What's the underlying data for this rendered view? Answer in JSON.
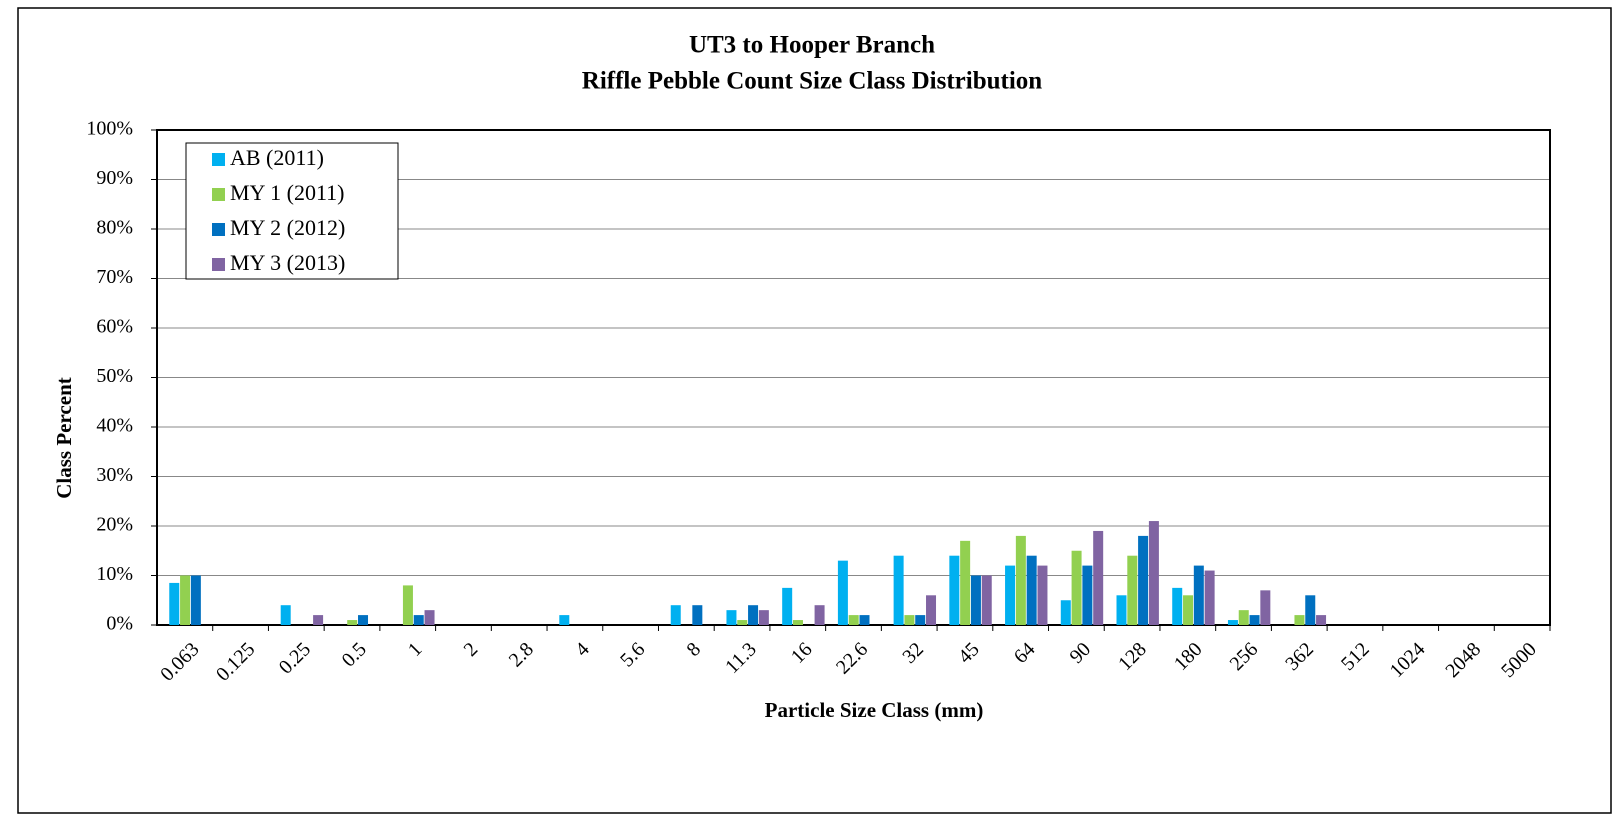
{
  "chart_data": {
    "type": "bar",
    "title": "UT3 to Hooper Branch",
    "subtitle": "Riffle Pebble Count Size Class Distribution",
    "x_label": "Particle Size Class (mm)",
    "y_label": "Class Percent",
    "categories": [
      "0.063",
      "0.125",
      "0.25",
      "0.5",
      "1",
      "2",
      "2.8",
      "4",
      "5.6",
      "8",
      "11.3",
      "16",
      "22.6",
      "32",
      "45",
      "64",
      "90",
      "128",
      "180",
      "256",
      "362",
      "512",
      "1024",
      "2048",
      "5000"
    ],
    "series": [
      {
        "name": "AB (2011)",
        "color": "#00b0f0",
        "values": [
          8.5,
          0,
          4,
          0,
          0,
          0,
          0,
          2,
          0,
          4,
          3,
          7.5,
          13,
          14,
          14,
          12,
          5,
          6,
          7.5,
          1,
          0,
          0,
          0,
          0,
          0
        ]
      },
      {
        "name": "MY 1 (2011)",
        "color": "#92d050",
        "values": [
          10,
          0,
          0,
          1,
          8,
          0,
          0,
          0,
          0,
          0,
          1,
          1,
          2,
          2,
          17,
          18,
          15,
          14,
          6,
          3,
          2,
          0,
          0,
          0,
          0
        ]
      },
      {
        "name": "MY 2 (2012)",
        "color": "#0070c0",
        "values": [
          10,
          0,
          0,
          2,
          2,
          0,
          0,
          0,
          0,
          4,
          4,
          0,
          2,
          2,
          10,
          14,
          12,
          18,
          12,
          2,
          6,
          0,
          0,
          0,
          0
        ]
      },
      {
        "name": "MY 3 (2013)",
        "color": "#8064a2",
        "values": [
          0,
          0,
          2,
          0,
          3,
          0,
          0,
          0,
          0,
          0,
          3,
          4,
          0,
          6,
          10,
          12,
          19,
          21,
          11,
          7,
          2,
          0,
          0,
          0,
          0
        ]
      }
    ],
    "ylim": [
      0,
      100
    ],
    "yticks": [
      {
        "value": 0,
        "label": "0%"
      },
      {
        "value": 10,
        "label": "10%"
      },
      {
        "value": 20,
        "label": "20%"
      },
      {
        "value": 30,
        "label": "30%"
      },
      {
        "value": 40,
        "label": "40%"
      },
      {
        "value": 50,
        "label": "50%"
      },
      {
        "value": 60,
        "label": "60%"
      },
      {
        "value": 70,
        "label": "70%"
      },
      {
        "value": 80,
        "label": "80%"
      },
      {
        "value": 90,
        "label": "90%"
      },
      {
        "value": 100,
        "label": "100%"
      }
    ],
    "grid": true,
    "legend": "top-left"
  }
}
